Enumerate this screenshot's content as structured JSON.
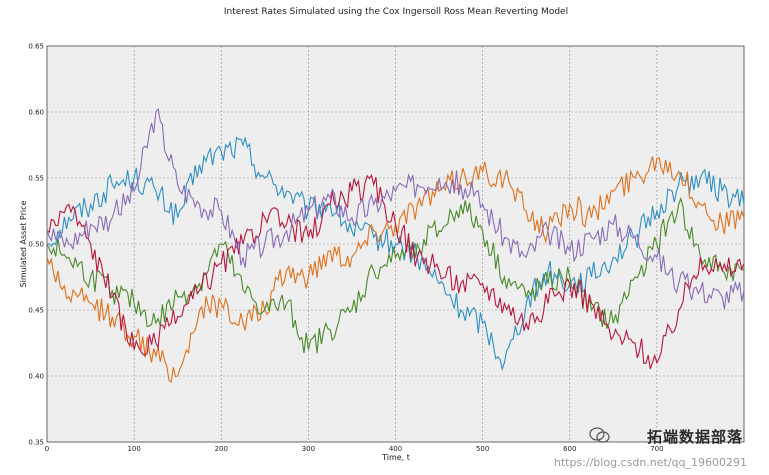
{
  "chart_data": {
    "type": "line",
    "title": "Interest Rates Simulated using the Cox Ingersoll Ross Mean Reverting Model",
    "xlabel": "Time, t",
    "ylabel": "Simulated Asset Price",
    "xlim": [
      0,
      800
    ],
    "ylim": [
      0.35,
      0.65
    ],
    "x_ticks": [
      0,
      100,
      200,
      300,
      400,
      500,
      600,
      700
    ],
    "y_ticks": [
      0.35,
      0.4,
      0.45,
      0.5,
      0.55,
      0.6,
      0.65
    ],
    "grid": true,
    "series": [
      {
        "color": "#2f8fc4",
        "x": [
          0,
          25,
          50,
          75,
          100,
          125,
          150,
          175,
          200,
          225,
          250,
          275,
          300,
          325,
          350,
          375,
          400,
          425,
          450,
          475,
          500,
          525,
          550,
          575,
          600,
          625,
          650,
          675,
          700,
          725,
          750,
          775,
          800
        ],
        "values": [
          0.5,
          0.52,
          0.53,
          0.545,
          0.55,
          0.54,
          0.52,
          0.56,
          0.57,
          0.575,
          0.55,
          0.54,
          0.525,
          0.53,
          0.51,
          0.505,
          0.5,
          0.49,
          0.47,
          0.45,
          0.44,
          0.41,
          0.455,
          0.48,
          0.47,
          0.475,
          0.49,
          0.505,
          0.525,
          0.545,
          0.55,
          0.54,
          0.53
        ]
      },
      {
        "color": "#e0711c",
        "x": [
          0,
          25,
          50,
          75,
          100,
          125,
          150,
          175,
          200,
          225,
          250,
          275,
          300,
          325,
          350,
          375,
          400,
          425,
          450,
          475,
          500,
          525,
          550,
          575,
          600,
          625,
          650,
          675,
          700,
          725,
          750,
          775,
          800
        ],
        "values": [
          0.49,
          0.46,
          0.455,
          0.445,
          0.43,
          0.415,
          0.4,
          0.45,
          0.455,
          0.44,
          0.45,
          0.48,
          0.475,
          0.495,
          0.49,
          0.51,
          0.515,
          0.53,
          0.54,
          0.55,
          0.555,
          0.55,
          0.525,
          0.51,
          0.53,
          0.52,
          0.54,
          0.55,
          0.565,
          0.555,
          0.53,
          0.515,
          0.52
        ]
      },
      {
        "color": "#4a8a2a",
        "x": [
          0,
          25,
          50,
          75,
          100,
          125,
          150,
          175,
          200,
          225,
          250,
          275,
          300,
          325,
          350,
          375,
          400,
          425,
          450,
          475,
          500,
          525,
          550,
          575,
          600,
          625,
          650,
          675,
          700,
          725,
          750,
          775,
          800
        ],
        "values": [
          0.5,
          0.49,
          0.475,
          0.465,
          0.455,
          0.44,
          0.46,
          0.47,
          0.5,
          0.465,
          0.45,
          0.455,
          0.42,
          0.435,
          0.45,
          0.48,
          0.49,
          0.5,
          0.51,
          0.53,
          0.51,
          0.475,
          0.46,
          0.47,
          0.475,
          0.45,
          0.44,
          0.475,
          0.5,
          0.53,
          0.49,
          0.48,
          0.48
        ]
      },
      {
        "color": "#b8163c",
        "x": [
          0,
          25,
          50,
          75,
          100,
          125,
          150,
          175,
          200,
          225,
          250,
          275,
          300,
          325,
          350,
          375,
          400,
          425,
          450,
          475,
          500,
          525,
          550,
          575,
          600,
          625,
          650,
          675,
          700,
          725,
          750,
          775,
          800
        ],
        "values": [
          0.51,
          0.53,
          0.5,
          0.46,
          0.42,
          0.425,
          0.445,
          0.465,
          0.485,
          0.5,
          0.52,
          0.515,
          0.505,
          0.53,
          0.54,
          0.545,
          0.515,
          0.49,
          0.48,
          0.47,
          0.47,
          0.455,
          0.44,
          0.455,
          0.47,
          0.455,
          0.43,
          0.425,
          0.41,
          0.45,
          0.49,
          0.48,
          0.485
        ]
      },
      {
        "color": "#8a6bb8",
        "x": [
          0,
          25,
          50,
          75,
          100,
          125,
          150,
          175,
          200,
          225,
          250,
          275,
          300,
          325,
          350,
          375,
          400,
          425,
          450,
          475,
          500,
          525,
          550,
          575,
          600,
          625,
          650,
          675,
          700,
          725,
          750,
          775,
          800
        ],
        "values": [
          0.51,
          0.5,
          0.515,
          0.52,
          0.54,
          0.6,
          0.545,
          0.53,
          0.525,
          0.49,
          0.5,
          0.51,
          0.525,
          0.535,
          0.52,
          0.53,
          0.54,
          0.545,
          0.55,
          0.545,
          0.53,
          0.505,
          0.49,
          0.51,
          0.495,
          0.505,
          0.515,
          0.505,
          0.49,
          0.47,
          0.465,
          0.46,
          0.465
        ]
      }
    ]
  },
  "watermark": {
    "text_cn": "拓端数据部落",
    "url": "https://blog.csdn.net/qq_19600291"
  }
}
